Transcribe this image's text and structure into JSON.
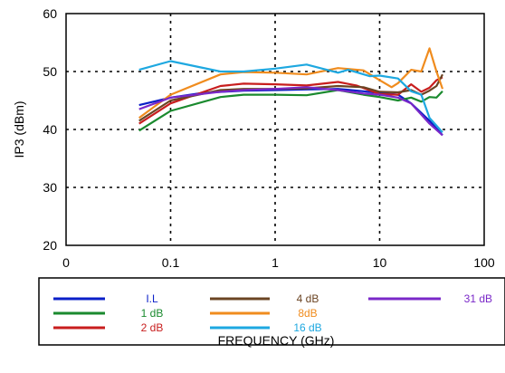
{
  "chart_data": {
    "type": "line",
    "title": "",
    "xlabel": "FREQUENCY (GHz)",
    "ylabel": "IP3 (dBm)",
    "x_scale": "log",
    "xlim": [
      0.01,
      100
    ],
    "ylim": [
      20,
      60
    ],
    "x_ticks": [
      {
        "value": 0.01,
        "label": "0"
      },
      {
        "value": 0.1,
        "label": "0.1"
      },
      {
        "value": 1,
        "label": "1"
      },
      {
        "value": 10,
        "label": "10"
      },
      {
        "value": 100,
        "label": "100"
      }
    ],
    "y_ticks": [
      {
        "value": 20,
        "label": "20"
      },
      {
        "value": 30,
        "label": "30"
      },
      {
        "value": 40,
        "label": "40"
      },
      {
        "value": 50,
        "label": "50"
      },
      {
        "value": 60,
        "label": "60"
      }
    ],
    "grid": true,
    "grid_style": "dotted",
    "legend_position": "below",
    "series": [
      {
        "name": "I.L",
        "color": "#0a1fc8",
        "points": [
          [
            0.05,
            44.2
          ],
          [
            0.1,
            45.5
          ],
          [
            0.2,
            46.3
          ],
          [
            0.5,
            46.7
          ],
          [
            1,
            46.8
          ],
          [
            2,
            46.9
          ],
          [
            4,
            47.0
          ],
          [
            7,
            46.6
          ],
          [
            10,
            46.3
          ],
          [
            15,
            46.0
          ],
          [
            20,
            44.5
          ],
          [
            30,
            41.5
          ],
          [
            40,
            39.0
          ]
        ]
      },
      {
        "name": "1 dB",
        "color": "#1a8a2e",
        "points": [
          [
            0.05,
            39.8
          ],
          [
            0.1,
            43.2
          ],
          [
            0.3,
            45.6
          ],
          [
            0.5,
            46.0
          ],
          [
            1,
            46.0
          ],
          [
            2,
            45.9
          ],
          [
            4,
            46.8
          ],
          [
            7,
            46.0
          ],
          [
            10,
            45.6
          ],
          [
            15,
            45.0
          ],
          [
            20,
            45.5
          ],
          [
            25,
            44.8
          ],
          [
            30,
            45.6
          ],
          [
            35,
            45.5
          ],
          [
            40,
            46.6
          ]
        ]
      },
      {
        "name": "2 dB",
        "color": "#c81e1e",
        "points": [
          [
            0.05,
            41.0
          ],
          [
            0.1,
            44.5
          ],
          [
            0.3,
            47.5
          ],
          [
            0.5,
            47.9
          ],
          [
            1,
            47.8
          ],
          [
            2,
            47.6
          ],
          [
            4,
            48.2
          ],
          [
            6,
            47.6
          ],
          [
            10,
            46.1
          ],
          [
            15,
            46.0
          ],
          [
            20,
            47.8
          ],
          [
            25,
            46.5
          ],
          [
            30,
            47.2
          ],
          [
            35,
            48.5
          ],
          [
            40,
            49.0
          ]
        ]
      },
      {
        "name": "4 dB",
        "color": "#6b4423",
        "points": [
          [
            0.05,
            41.5
          ],
          [
            0.1,
            45.0
          ],
          [
            0.3,
            46.8
          ],
          [
            0.5,
            47.0
          ],
          [
            1,
            47.0
          ],
          [
            2,
            47.1
          ],
          [
            4,
            47.5
          ],
          [
            7,
            47.3
          ],
          [
            10,
            46.5
          ],
          [
            15,
            46.4
          ],
          [
            20,
            46.8
          ],
          [
            25,
            46.0
          ],
          [
            30,
            46.7
          ],
          [
            35,
            47.5
          ],
          [
            40,
            49.5
          ]
        ]
      },
      {
        "name": "8dB",
        "color": "#f08c1e",
        "points": [
          [
            0.05,
            42.0
          ],
          [
            0.1,
            46.0
          ],
          [
            0.3,
            49.5
          ],
          [
            0.5,
            49.9
          ],
          [
            1,
            49.8
          ],
          [
            2,
            49.5
          ],
          [
            4,
            50.6
          ],
          [
            7,
            50.2
          ],
          [
            10,
            48.5
          ],
          [
            13,
            47.3
          ],
          [
            15,
            48.0
          ],
          [
            20,
            50.3
          ],
          [
            25,
            50.0
          ],
          [
            30,
            54.0
          ],
          [
            35,
            50.0
          ],
          [
            40,
            47.0
          ]
        ]
      },
      {
        "name": "16 dB",
        "color": "#1ea8e0",
        "points": [
          [
            0.05,
            50.3
          ],
          [
            0.1,
            51.8
          ],
          [
            0.3,
            50.0
          ],
          [
            0.5,
            50.0
          ],
          [
            1,
            50.5
          ],
          [
            2,
            51.2
          ],
          [
            4,
            49.8
          ],
          [
            5,
            50.3
          ],
          [
            8,
            49.2
          ],
          [
            10,
            49.3
          ],
          [
            15,
            48.8
          ],
          [
            20,
            46.6
          ],
          [
            25,
            46.0
          ],
          [
            30,
            42.0
          ],
          [
            40,
            39.5
          ]
        ]
      },
      {
        "name": "31 dB",
        "color": "#7a28c8",
        "points": [
          [
            0.05,
            43.5
          ],
          [
            0.1,
            45.5
          ],
          [
            0.3,
            46.5
          ],
          [
            0.5,
            46.8
          ],
          [
            1,
            47.0
          ],
          [
            2,
            47.3
          ],
          [
            4,
            46.8
          ],
          [
            7,
            46.2
          ],
          [
            10,
            46.0
          ],
          [
            15,
            45.5
          ],
          [
            20,
            44.5
          ],
          [
            30,
            41.0
          ],
          [
            40,
            39.0
          ]
        ]
      }
    ],
    "legend_layout": [
      [
        "I.L",
        "4 dB",
        "31 dB"
      ],
      [
        "1 dB",
        "8dB"
      ],
      [
        "2 dB",
        "16 dB"
      ]
    ]
  }
}
